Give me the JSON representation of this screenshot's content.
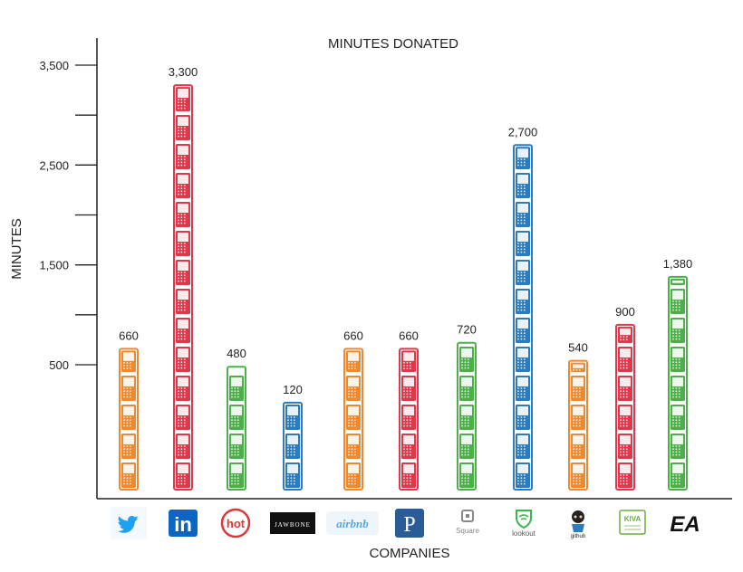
{
  "chart_data": {
    "type": "bar",
    "title": "MINUTES DONATED",
    "xlabel": "COMPANIES",
    "ylabel": "MINUTES",
    "ylim": [
      0,
      3650
    ],
    "yticks_labeled": [
      "3,500",
      "2,500",
      "1,500",
      "500"
    ],
    "categories": [
      "twitter",
      "linkedin",
      "hot",
      "JAWBONE",
      "airbnb",
      "P",
      "Square",
      "lookout",
      "github",
      "KIVA",
      "EA"
    ],
    "values": [
      660,
      3300,
      480,
      120,
      660,
      660,
      720,
      2700,
      540,
      900,
      1380
    ],
    "value_labels": [
      "660",
      "3,300",
      "480",
      "120",
      "660",
      "660",
      "720",
      "2,700",
      "540",
      "900",
      "1,380"
    ],
    "bar_colors": [
      "#f0892e",
      "#e0384a",
      "#4bb04a",
      "#2b7bc1",
      "#f0892e",
      "#e0384a",
      "#4bb04a",
      "#2b7bc1",
      "#f0892e",
      "#e0384a",
      "#4bb04a"
    ],
    "legend": "none",
    "grid": false
  },
  "logos": {
    "hot": "hot",
    "jawbone": "JAWBONE",
    "airbnb": "airbnb",
    "p": "P",
    "square": "Square",
    "lookout": "lookout",
    "kiva": "KIVA",
    "ea": "EA"
  },
  "colors": {
    "twitter": "#1da1f2",
    "linkedin": "#0a66c2",
    "hot": "#d83a3a",
    "airbnb": "#5aa6dd",
    "pandora": "#2a5d98",
    "lookout": "#39b54a",
    "kiva": "#6cae3f"
  }
}
